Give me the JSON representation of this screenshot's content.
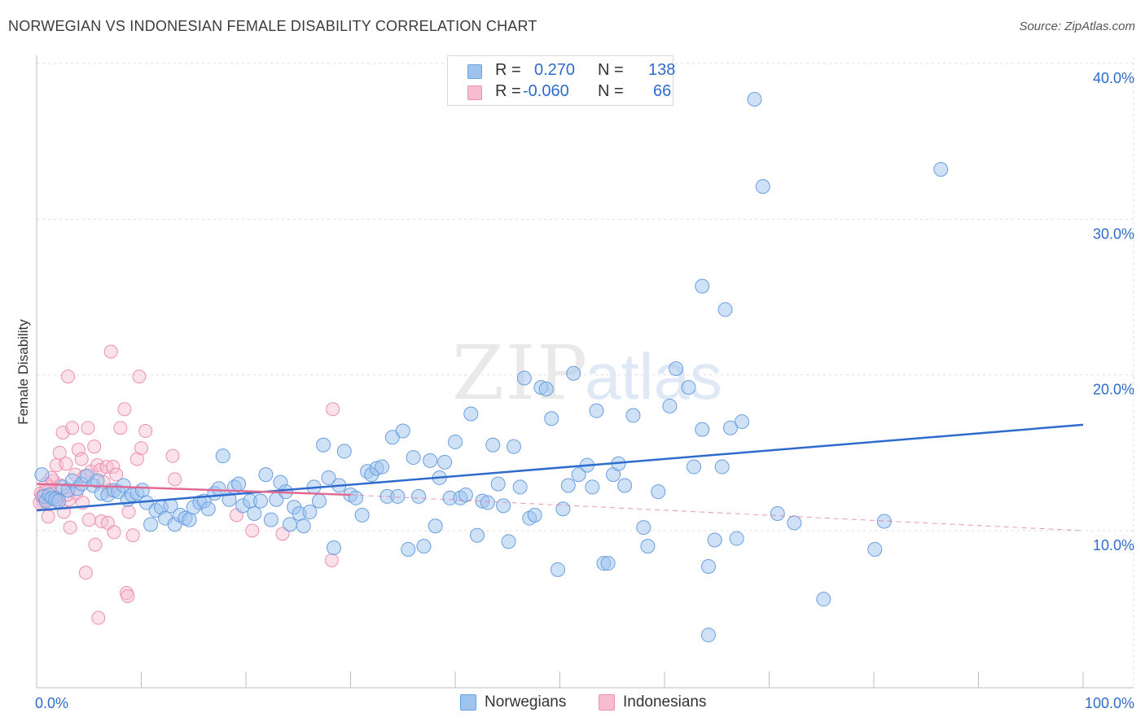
{
  "header": {
    "title": "NORWEGIAN VS INDONESIAN FEMALE DISABILITY CORRELATION CHART",
    "source": "Source: ZipAtlas.com"
  },
  "watermark": {
    "zip": "ZIP",
    "atlas": "atlas"
  },
  "legend": {
    "rows": [
      {
        "r_label": "R =",
        "r_value": "0.270",
        "n_label": "N =",
        "n_value": "138",
        "color": "#9ec3ef",
        "border": "#6a9fe0"
      },
      {
        "r_label": "R =",
        "r_value": "-0.060",
        "n_label": "N =",
        "n_value": "66",
        "color": "#f7bcd0",
        "border": "#ee8fb0"
      }
    ]
  },
  "bottom_legend": [
    {
      "label": "Norwegians",
      "color": "#9ec3ef",
      "border": "#6a9fe0"
    },
    {
      "label": "Indonesians",
      "color": "#f7bcd0",
      "border": "#ee8fb0"
    }
  ],
  "chart_data": {
    "type": "scatter",
    "title": "NORWEGIAN VS INDONESIAN FEMALE DISABILITY CORRELATION CHART",
    "xlabel": "",
    "ylabel": "Female Disability",
    "xlim": [
      0,
      100
    ],
    "ylim": [
      0,
      42
    ],
    "x_tick_labels": [
      {
        "value": 0,
        "label": "0.0%"
      },
      {
        "value": 100,
        "label": "100.0%"
      }
    ],
    "y_tick_labels": [
      {
        "value": 10,
        "label": "10.0%"
      },
      {
        "value": 20,
        "label": "20.0%"
      },
      {
        "value": 30,
        "label": "30.0%"
      },
      {
        "value": 40,
        "label": "40.0%"
      }
    ],
    "x_minor_ticks": [
      10,
      20,
      30,
      40,
      50,
      60,
      70,
      80,
      90,
      100
    ],
    "grid": true,
    "series": [
      {
        "name": "Norwegians",
        "color": "#9ec3ef",
        "stroke": "#6a9fe0",
        "trend": {
          "x": [
            0,
            100
          ],
          "y": [
            11.3,
            16.8
          ],
          "color": "#2f6bcc"
        },
        "points": [
          [
            0.5,
            13.6
          ],
          [
            0.7,
            12.2
          ],
          [
            0.9,
            11.9
          ],
          [
            1.2,
            12.3
          ],
          [
            1.5,
            12.1
          ],
          [
            1.8,
            12.0
          ],
          [
            2.1,
            11.9
          ],
          [
            2.5,
            12.8
          ],
          [
            3.0,
            12.6
          ],
          [
            3.4,
            13.2
          ],
          [
            3.9,
            12.7
          ],
          [
            4.3,
            13.0
          ],
          [
            4.8,
            13.5
          ],
          [
            5.4,
            12.9
          ],
          [
            5.8,
            13.2
          ],
          [
            6.2,
            12.4
          ],
          [
            6.8,
            12.3
          ],
          [
            7.4,
            12.6
          ],
          [
            7.8,
            12.5
          ],
          [
            8.3,
            12.9
          ],
          [
            8.7,
            12.0
          ],
          [
            9.1,
            12.3
          ],
          [
            9.6,
            12.4
          ],
          [
            10.1,
            12.6
          ],
          [
            10.5,
            11.8
          ],
          [
            10.9,
            10.4
          ],
          [
            11.4,
            11.3
          ],
          [
            11.9,
            11.5
          ],
          [
            12.3,
            10.8
          ],
          [
            12.8,
            11.6
          ],
          [
            13.2,
            10.4
          ],
          [
            13.7,
            11.0
          ],
          [
            14.2,
            10.8
          ],
          [
            14.6,
            10.7
          ],
          [
            15.0,
            11.5
          ],
          [
            15.6,
            11.8
          ],
          [
            16.0,
            11.9
          ],
          [
            16.4,
            11.4
          ],
          [
            17.0,
            12.4
          ],
          [
            17.4,
            12.7
          ],
          [
            17.8,
            14.8
          ],
          [
            18.4,
            12.0
          ],
          [
            18.9,
            12.8
          ],
          [
            19.3,
            13.0
          ],
          [
            19.7,
            11.6
          ],
          [
            20.4,
            11.9
          ],
          [
            20.8,
            11.1
          ],
          [
            21.4,
            11.9
          ],
          [
            21.9,
            13.6
          ],
          [
            22.4,
            10.7
          ],
          [
            22.9,
            12.0
          ],
          [
            23.3,
            13.1
          ],
          [
            23.8,
            12.5
          ],
          [
            24.2,
            10.4
          ],
          [
            24.6,
            11.5
          ],
          [
            25.1,
            11.1
          ],
          [
            25.5,
            10.3
          ],
          [
            26.1,
            11.2
          ],
          [
            26.5,
            12.8
          ],
          [
            27.0,
            11.9
          ],
          [
            27.4,
            15.5
          ],
          [
            27.9,
            13.4
          ],
          [
            28.4,
            8.9
          ],
          [
            28.9,
            12.9
          ],
          [
            29.4,
            15.1
          ],
          [
            30.0,
            12.3
          ],
          [
            30.5,
            12.1
          ],
          [
            31.1,
            11.0
          ],
          [
            31.6,
            13.8
          ],
          [
            32.0,
            13.6
          ],
          [
            32.5,
            14.0
          ],
          [
            33.0,
            14.1
          ],
          [
            33.5,
            12.2
          ],
          [
            34.0,
            16.0
          ],
          [
            34.5,
            12.2
          ],
          [
            35.0,
            16.4
          ],
          [
            35.5,
            8.8
          ],
          [
            36.0,
            14.7
          ],
          [
            36.5,
            12.2
          ],
          [
            37.0,
            9.0
          ],
          [
            37.6,
            14.5
          ],
          [
            38.1,
            10.3
          ],
          [
            38.5,
            13.4
          ],
          [
            39.0,
            14.4
          ],
          [
            39.5,
            12.1
          ],
          [
            40.0,
            15.7
          ],
          [
            40.5,
            12.1
          ],
          [
            41.0,
            12.3
          ],
          [
            41.5,
            17.5
          ],
          [
            42.1,
            9.7
          ],
          [
            42.6,
            11.9
          ],
          [
            43.1,
            11.8
          ],
          [
            43.6,
            15.5
          ],
          [
            44.1,
            13.0
          ],
          [
            44.6,
            11.6
          ],
          [
            45.1,
            9.3
          ],
          [
            45.6,
            15.4
          ],
          [
            46.2,
            12.8
          ],
          [
            46.6,
            19.8
          ],
          [
            47.1,
            10.8
          ],
          [
            47.6,
            11.0
          ],
          [
            48.2,
            19.2
          ],
          [
            48.7,
            19.1
          ],
          [
            49.2,
            17.2
          ],
          [
            49.8,
            7.5
          ],
          [
            50.3,
            11.4
          ],
          [
            50.8,
            12.9
          ],
          [
            51.3,
            20.1
          ],
          [
            51.8,
            13.6
          ],
          [
            52.6,
            14.2
          ],
          [
            53.1,
            12.8
          ],
          [
            53.5,
            17.7
          ],
          [
            54.2,
            7.9
          ],
          [
            54.6,
            7.9
          ],
          [
            55.1,
            13.6
          ],
          [
            55.6,
            14.3
          ],
          [
            56.2,
            12.9
          ],
          [
            57.0,
            17.4
          ],
          [
            58.0,
            10.2
          ],
          [
            58.4,
            9.0
          ],
          [
            59.4,
            12.5
          ],
          [
            60.5,
            18.0
          ],
          [
            61.1,
            20.4
          ],
          [
            62.3,
            19.2
          ],
          [
            62.8,
            14.1
          ],
          [
            63.6,
            16.5
          ],
          [
            64.2,
            7.7
          ],
          [
            64.8,
            9.4
          ],
          [
            65.5,
            14.1
          ],
          [
            66.3,
            16.6
          ],
          [
            66.9,
            9.5
          ],
          [
            67.4,
            17.0
          ],
          [
            68.6,
            37.7
          ],
          [
            69.4,
            32.1
          ],
          [
            63.6,
            25.7
          ],
          [
            65.8,
            24.2
          ],
          [
            86.4,
            33.2
          ],
          [
            70.8,
            11.1
          ],
          [
            72.4,
            10.5
          ],
          [
            75.2,
            5.6
          ],
          [
            80.1,
            8.8
          ],
          [
            81.0,
            10.6
          ],
          [
            64.2,
            3.3
          ]
        ]
      },
      {
        "name": "Indonesians",
        "color": "#f7bcd0",
        "stroke": "#ee8fb0",
        "trend": {
          "x": [
            0,
            30
          ],
          "y": [
            13.0,
            12.3
          ],
          "color": "#e06a94",
          "dash_to": [
            100,
            10.0
          ]
        },
        "points": [
          [
            0.4,
            12.4
          ],
          [
            0.6,
            11.9
          ],
          [
            0.8,
            12.5
          ],
          [
            1.0,
            12.0
          ],
          [
            1.3,
            12.8
          ],
          [
            1.6,
            13.2
          ],
          [
            1.9,
            14.2
          ],
          [
            2.2,
            15.0
          ],
          [
            2.5,
            16.3
          ],
          [
            2.8,
            14.3
          ],
          [
            3.1,
            12.0
          ],
          [
            3.4,
            16.6
          ],
          [
            3.7,
            13.6
          ],
          [
            4.0,
            15.2
          ],
          [
            4.3,
            14.6
          ],
          [
            4.6,
            13.5
          ],
          [
            4.9,
            16.6
          ],
          [
            5.2,
            13.8
          ],
          [
            5.5,
            15.4
          ],
          [
            5.8,
            14.2
          ],
          [
            6.1,
            13.9
          ],
          [
            6.4,
            13.1
          ],
          [
            6.7,
            14.1
          ],
          [
            7.0,
            12.6
          ],
          [
            7.3,
            14.1
          ],
          [
            7.6,
            13.6
          ],
          [
            8.0,
            16.6
          ],
          [
            8.4,
            17.8
          ],
          [
            8.8,
            11.2
          ],
          [
            9.2,
            9.7
          ],
          [
            9.6,
            14.6
          ],
          [
            10.0,
            15.3
          ],
          [
            10.4,
            16.4
          ],
          [
            3.0,
            19.9
          ],
          [
            7.1,
            21.5
          ],
          [
            9.8,
            19.9
          ],
          [
            2.0,
            12.0
          ],
          [
            2.6,
            11.2
          ],
          [
            3.2,
            10.2
          ],
          [
            3.8,
            12.4
          ],
          [
            4.4,
            11.8
          ],
          [
            5.0,
            10.7
          ],
          [
            5.6,
            9.1
          ],
          [
            6.2,
            10.6
          ],
          [
            6.8,
            10.5
          ],
          [
            7.4,
            9.9
          ],
          [
            8.6,
            6.0
          ],
          [
            8.7,
            5.8
          ],
          [
            4.7,
            7.3
          ],
          [
            5.9,
            4.4
          ],
          [
            13.2,
            13.3
          ],
          [
            13.0,
            14.8
          ],
          [
            19.1,
            11.0
          ],
          [
            20.6,
            10.0
          ],
          [
            23.5,
            9.8
          ],
          [
            28.3,
            17.8
          ],
          [
            28.2,
            8.1
          ],
          [
            1.1,
            10.9
          ],
          [
            1.4,
            13.4
          ],
          [
            1.7,
            12.1
          ],
          [
            2.3,
            12.9
          ],
          [
            0.3,
            11.8
          ],
          [
            0.5,
            12.2
          ],
          [
            0.9,
            13.0
          ],
          [
            1.2,
            11.7
          ],
          [
            2.9,
            12.3
          ]
        ]
      }
    ]
  }
}
